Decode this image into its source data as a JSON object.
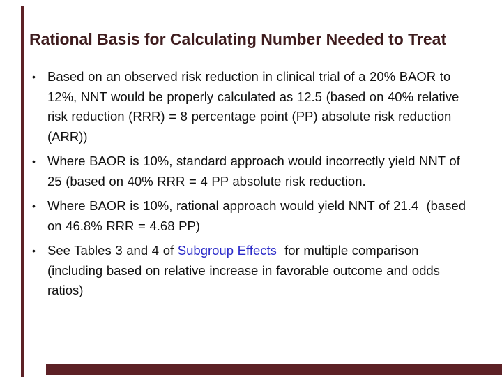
{
  "slide": {
    "title": "Rational Basis for Calculating Number Needed to Treat",
    "bullets": [
      {
        "text": "Based on an observed risk reduction in clinical trial of a 20% BAOR to 12%, NNT would be properly calculated as 12.5 (based on 40% relative risk reduction (RRR) = 8 percentage point (PP) absolute risk reduction (ARR))"
      },
      {
        "text": "Where BAOR is 10%, standard approach would incorrectly yield NNT of  25 (based on 40% RRR = 4 PP absolute risk reduction."
      },
      {
        "text": "Where BAOR is 10%, rational approach would yield NNT of 21.4  (based on 46.8% RRR = 4.68 PP)"
      },
      {
        "text_before_link": "See Tables 3 and 4 of ",
        "link_text": "Subgroup Effects",
        "text_after_link": "  for multiple comparison (including based on relative increase in favorable outcome and odds ratios)"
      }
    ],
    "bullet_marker": "•",
    "colors": {
      "accent_bar": "#5D2126",
      "title_text": "#3E1C1E",
      "body_text": "#111111",
      "link": "#2929C8"
    }
  }
}
